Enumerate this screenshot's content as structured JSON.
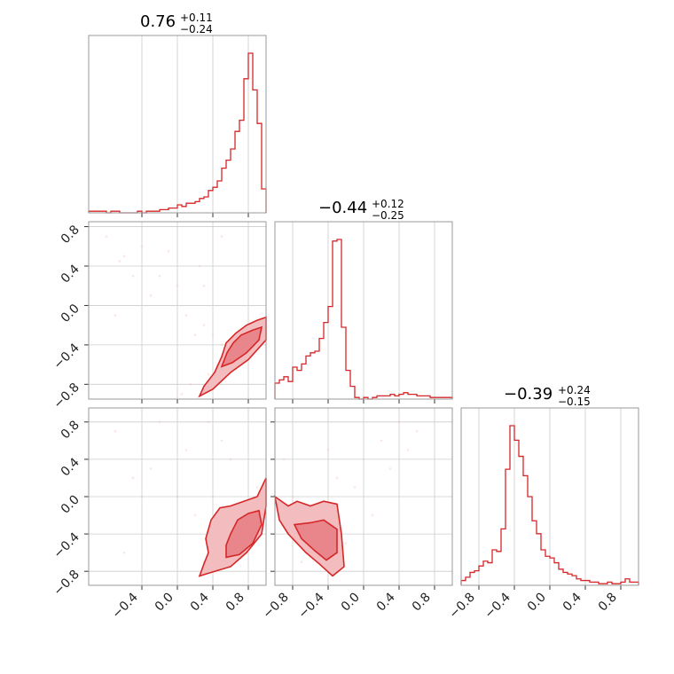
{
  "figure": {
    "type": "corner-plot",
    "colors": {
      "accent": "#d62728",
      "fill_light": "#f3bcbf",
      "fill_mid": "#e8868c",
      "grid": "#cccccc",
      "frame": "#999999"
    }
  },
  "chart_data": [
    {
      "type": "bar",
      "panel": "hist-p1",
      "title": {
        "value": "0.76",
        "plus": "+0.11",
        "minus": "−0.24"
      },
      "x": [
        -1.0,
        -0.95,
        -0.9,
        -0.85,
        -0.8,
        -0.75,
        -0.7,
        -0.65,
        -0.6,
        -0.55,
        -0.5,
        -0.45,
        -0.4,
        -0.35,
        -0.3,
        -0.25,
        -0.2,
        -0.15,
        -0.1,
        -0.05,
        0.0,
        0.05,
        0.1,
        0.15,
        0.2,
        0.25,
        0.3,
        0.35,
        0.4,
        0.45,
        0.5,
        0.55,
        0.6,
        0.65,
        0.7,
        0.75,
        0.8,
        0.85,
        0.9,
        0.95
      ],
      "values": [
        1,
        1,
        1,
        1,
        0,
        1,
        1,
        0,
        0,
        0,
        0,
        1,
        0,
        1,
        1,
        1,
        2,
        2,
        3,
        3,
        5,
        4,
        6,
        6,
        7,
        9,
        10,
        14,
        16,
        20,
        28,
        33,
        40,
        51,
        58,
        84,
        100,
        77,
        56,
        15
      ],
      "xlim": [
        -1.0,
        1.0
      ],
      "ticks": [
        -0.4,
        0.0,
        0.4,
        0.8
      ],
      "tick_labels": [
        "−0.4",
        "0.0",
        "0.4",
        "0.8"
      ]
    },
    {
      "type": "bar",
      "panel": "hist-p2",
      "title": {
        "value": "−0.44",
        "plus": "+0.12",
        "minus": "−0.25"
      },
      "x": [
        -1.0,
        -0.95,
        -0.9,
        -0.85,
        -0.8,
        -0.75,
        -0.7,
        -0.65,
        -0.6,
        -0.55,
        -0.5,
        -0.45,
        -0.4,
        -0.35,
        -0.3,
        -0.25,
        -0.2,
        -0.15,
        -0.1,
        -0.05,
        0.0,
        0.05,
        0.1,
        0.15,
        0.2,
        0.25,
        0.3,
        0.35,
        0.4,
        0.45,
        0.5,
        0.55,
        0.6,
        0.65,
        0.7,
        0.75,
        0.8,
        0.85,
        0.9,
        0.95
      ],
      "values": [
        10,
        12,
        14,
        11,
        20,
        18,
        22,
        27,
        29,
        30,
        38,
        48,
        58,
        99,
        100,
        45,
        18,
        8,
        1,
        0,
        1,
        0,
        1,
        2,
        2,
        2,
        3,
        2,
        3,
        4,
        3,
        3,
        2,
        2,
        2,
        1,
        1,
        1,
        1,
        1
      ],
      "xlim": [
        -1.0,
        1.0
      ],
      "ticks": [
        -0.8,
        -0.4,
        0.0,
        0.4,
        0.8
      ],
      "tick_labels": [
        "−0.8",
        "−0.4",
        "0.0",
        "0.4",
        "0.8"
      ]
    },
    {
      "type": "bar",
      "panel": "hist-p3",
      "title": {
        "value": "−0.39",
        "plus": "+0.24",
        "minus": "−0.15"
      },
      "x": [
        -1.0,
        -0.95,
        -0.9,
        -0.85,
        -0.8,
        -0.75,
        -0.7,
        -0.65,
        -0.6,
        -0.55,
        -0.5,
        -0.45,
        -0.4,
        -0.35,
        -0.3,
        -0.25,
        -0.2,
        -0.15,
        -0.1,
        -0.05,
        0.0,
        0.05,
        0.1,
        0.15,
        0.2,
        0.25,
        0.3,
        0.35,
        0.4,
        0.45,
        0.5,
        0.55,
        0.6,
        0.65,
        0.7,
        0.75,
        0.8,
        0.85,
        0.9,
        0.95
      ],
      "values": [
        3,
        5,
        8,
        9,
        12,
        15,
        14,
        22,
        21,
        35,
        72,
        99,
        90,
        80,
        68,
        55,
        40,
        32,
        22,
        18,
        17,
        14,
        10,
        8,
        7,
        6,
        4,
        3,
        3,
        2,
        2,
        1,
        1,
        2,
        1,
        1,
        2,
        4,
        2,
        2
      ],
      "xlim": [
        -1.0,
        1.0
      ],
      "ticks": [
        -0.8,
        -0.4,
        0.0,
        0.4,
        0.8
      ],
      "tick_labels": [
        "−0.8",
        "−0.4",
        "0.0",
        "0.4",
        "0.8"
      ]
    },
    {
      "type": "scatter",
      "panel": "joint-p1-p2",
      "xlim": [
        -1.0,
        1.0
      ],
      "ylim": [
        -0.95,
        0.85
      ],
      "yticks": [
        -0.8,
        -0.4,
        0.0,
        0.4,
        0.8
      ],
      "ytick_labels": [
        "−0.8",
        "−0.4",
        "0.0",
        "0.4",
        "0.8"
      ],
      "points": [
        [
          -0.8,
          0.7
        ],
        [
          -0.6,
          0.5
        ],
        [
          -0.4,
          0.6
        ],
        [
          -0.2,
          0.3
        ],
        [
          0.0,
          0.2
        ],
        [
          0.1,
          -0.1
        ],
        [
          0.2,
          -0.3
        ],
        [
          0.3,
          -0.2
        ],
        [
          0.5,
          -0.4
        ],
        [
          0.6,
          -0.5
        ],
        [
          0.7,
          -0.4
        ],
        [
          0.8,
          -0.3
        ],
        [
          0.9,
          -0.2
        ],
        [
          0.45,
          -0.6
        ],
        [
          0.35,
          -0.7
        ],
        [
          0.55,
          -0.65
        ],
        [
          0.65,
          -0.55
        ],
        [
          -0.7,
          -0.1
        ],
        [
          -0.3,
          0.1
        ],
        [
          0.25,
          0.4
        ],
        [
          0.5,
          0.7
        ],
        [
          -0.5,
          0.3
        ],
        [
          0.15,
          -0.8
        ],
        [
          0.05,
          -0.9
        ],
        [
          0.75,
          -0.35
        ],
        [
          0.85,
          -0.45
        ],
        [
          0.4,
          -0.3
        ],
        [
          -0.1,
          0.55
        ],
        [
          -0.65,
          0.45
        ],
        [
          0.3,
          0.2
        ]
      ],
      "contours": [
        {
          "level": "outer",
          "points": [
            [
              0.25,
              -0.92
            ],
            [
              0.4,
              -0.85
            ],
            [
              0.6,
              -0.68
            ],
            [
              0.8,
              -0.55
            ],
            [
              1.0,
              -0.35
            ],
            [
              1.0,
              -0.12
            ],
            [
              0.9,
              -0.15
            ],
            [
              0.78,
              -0.2
            ],
            [
              0.66,
              -0.28
            ],
            [
              0.55,
              -0.38
            ],
            [
              0.5,
              -0.52
            ],
            [
              0.42,
              -0.68
            ],
            [
              0.3,
              -0.82
            ]
          ]
        },
        {
          "level": "inner",
          "points": [
            [
              0.5,
              -0.62
            ],
            [
              0.62,
              -0.58
            ],
            [
              0.78,
              -0.48
            ],
            [
              0.92,
              -0.35
            ],
            [
              0.95,
              -0.22
            ],
            [
              0.85,
              -0.25
            ],
            [
              0.72,
              -0.3
            ],
            [
              0.63,
              -0.38
            ],
            [
              0.56,
              -0.48
            ]
          ]
        }
      ]
    },
    {
      "type": "scatter",
      "panel": "joint-p1-p3",
      "xlim": [
        -1.0,
        1.0
      ],
      "ylim": [
        -0.95,
        0.95
      ],
      "yticks": [
        -0.8,
        -0.4,
        0.0,
        0.4,
        0.8
      ],
      "ytick_labels": [
        "−0.8",
        "−0.4",
        "0.0",
        "0.4",
        "0.8"
      ],
      "xticks": [
        -0.4,
        0.0,
        0.4,
        0.8
      ],
      "xtick_labels": [
        "−0.4",
        "0.0",
        "0.4",
        "0.8"
      ],
      "points": [
        [
          -0.7,
          0.7
        ],
        [
          -0.3,
          0.3
        ],
        [
          0.0,
          0.0
        ],
        [
          0.2,
          -0.2
        ],
        [
          0.4,
          -0.5
        ],
        [
          0.6,
          -0.6
        ],
        [
          0.8,
          -0.4
        ],
        [
          0.9,
          0.1
        ],
        [
          0.5,
          0.6
        ],
        [
          -0.6,
          -0.6
        ],
        [
          0.1,
          0.5
        ],
        [
          0.3,
          -0.7
        ],
        [
          0.7,
          -0.2
        ],
        [
          0.45,
          -0.35
        ],
        [
          -0.2,
          0.8
        ],
        [
          0.35,
          0.8
        ],
        [
          0.6,
          0.4
        ],
        [
          -0.5,
          0.2
        ]
      ],
      "contours": [
        {
          "level": "outer",
          "points": [
            [
              0.25,
              -0.85
            ],
            [
              0.42,
              -0.8
            ],
            [
              0.6,
              -0.75
            ],
            [
              0.78,
              -0.6
            ],
            [
              0.95,
              -0.4
            ],
            [
              1.0,
              -0.1
            ],
            [
              1.0,
              0.2
            ],
            [
              0.9,
              0.0
            ],
            [
              0.75,
              -0.05
            ],
            [
              0.6,
              -0.1
            ],
            [
              0.48,
              -0.12
            ],
            [
              0.38,
              -0.25
            ],
            [
              0.32,
              -0.45
            ],
            [
              0.35,
              -0.6
            ],
            [
              0.3,
              -0.72
            ]
          ]
        },
        {
          "level": "inner",
          "points": [
            [
              0.55,
              -0.65
            ],
            [
              0.7,
              -0.62
            ],
            [
              0.85,
              -0.5
            ],
            [
              0.95,
              -0.3
            ],
            [
              0.92,
              -0.15
            ],
            [
              0.8,
              -0.18
            ],
            [
              0.68,
              -0.25
            ],
            [
              0.6,
              -0.4
            ],
            [
              0.55,
              -0.52
            ]
          ]
        }
      ]
    },
    {
      "type": "scatter",
      "panel": "joint-p2-p3",
      "xlim": [
        -1.0,
        1.0
      ],
      "ylim": [
        -0.95,
        0.95
      ],
      "xticks": [
        -0.8,
        -0.4,
        0.0,
        0.4,
        0.8
      ],
      "xtick_labels": [
        "−0.8",
        "−0.4",
        "0.0",
        "0.4",
        "0.8"
      ],
      "points": [
        [
          -0.8,
          0.0
        ],
        [
          -0.6,
          -0.3
        ],
        [
          -0.5,
          -0.1
        ],
        [
          -0.3,
          0.2
        ],
        [
          -0.2,
          -0.5
        ],
        [
          0.0,
          0.4
        ],
        [
          0.2,
          0.6
        ],
        [
          0.4,
          0.8
        ],
        [
          0.6,
          0.7
        ],
        [
          -0.7,
          -0.7
        ],
        [
          -0.4,
          0.5
        ],
        [
          0.1,
          -0.2
        ],
        [
          0.3,
          0.3
        ],
        [
          -0.1,
          0.1
        ],
        [
          0.5,
          0.5
        ],
        [
          -0.9,
          0.4
        ]
      ],
      "contours": [
        {
          "level": "outer",
          "points": [
            [
              -1.0,
              0.0
            ],
            [
              -0.85,
              -0.1
            ],
            [
              -0.75,
              -0.05
            ],
            [
              -0.6,
              -0.1
            ],
            [
              -0.45,
              -0.05
            ],
            [
              -0.3,
              -0.08
            ],
            [
              -0.25,
              -0.4
            ],
            [
              -0.22,
              -0.75
            ],
            [
              -0.35,
              -0.85
            ],
            [
              -0.5,
              -0.72
            ],
            [
              -0.65,
              -0.6
            ],
            [
              -0.85,
              -0.4
            ],
            [
              -0.95,
              -0.25
            ]
          ]
        },
        {
          "level": "inner",
          "points": [
            [
              -0.78,
              -0.3
            ],
            [
              -0.6,
              -0.28
            ],
            [
              -0.45,
              -0.25
            ],
            [
              -0.3,
              -0.35
            ],
            [
              -0.3,
              -0.6
            ],
            [
              -0.42,
              -0.68
            ],
            [
              -0.55,
              -0.58
            ],
            [
              -0.7,
              -0.45
            ]
          ]
        }
      ]
    }
  ]
}
